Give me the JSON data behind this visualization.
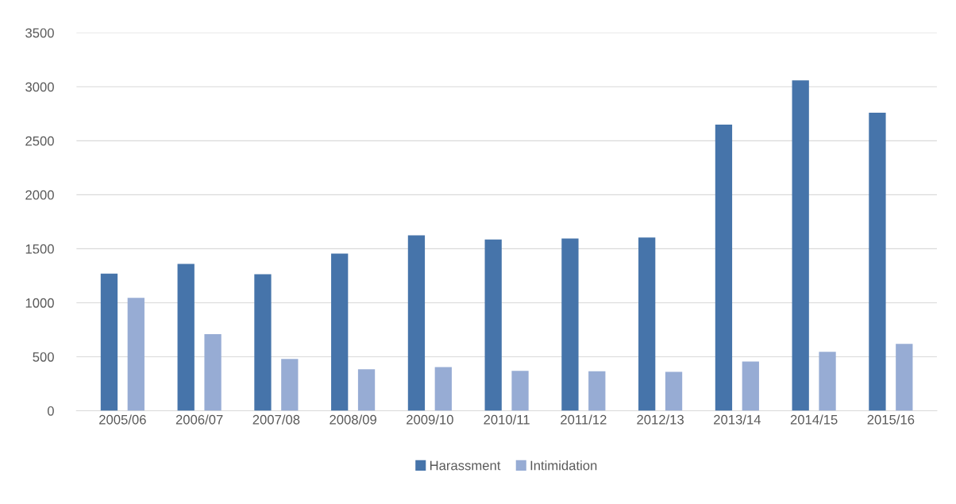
{
  "chart_data": {
    "type": "bar",
    "categories": [
      "2005/06",
      "2006/07",
      "2007/08",
      "2008/09",
      "2009/10",
      "2010/11",
      "2011/12",
      "2012/13",
      "2013/14",
      "2014/15",
      "2015/16"
    ],
    "series": [
      {
        "name": "Harassment",
        "color": "#4674aa",
        "values": [
          1270,
          1360,
          1265,
          1455,
          1625,
          1585,
          1595,
          1605,
          2650,
          3060,
          2760
        ]
      },
      {
        "name": "Intimidation",
        "color": "#97acd4",
        "values": [
          1045,
          710,
          480,
          385,
          405,
          370,
          365,
          360,
          455,
          545,
          620
        ]
      }
    ],
    "ylim": [
      0,
      3500
    ],
    "yticks": [
      0,
      500,
      1000,
      1500,
      2000,
      2500,
      3000,
      3500
    ],
    "grid": "y",
    "legend": "bottom"
  }
}
